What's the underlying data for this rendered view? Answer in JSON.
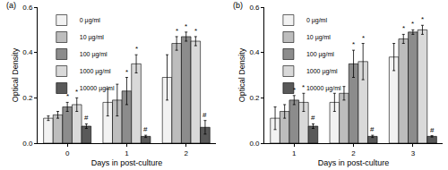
{
  "chart_data": [
    {
      "type": "bar",
      "title": "(a)",
      "x_label": "Days in post-culture",
      "y_label": "Optical Density",
      "categories": [
        "0",
        "1",
        "2"
      ],
      "series": [
        {
          "name": "0 µg/ml",
          "color": "#f2f2f2",
          "values": [
            0.11,
            0.18,
            0.29
          ],
          "errors": [
            0.01,
            0.06,
            0.1
          ],
          "annotations": [
            null,
            null,
            null
          ]
        },
        {
          "name": "10 µg/ml",
          "color": "#bdbdbd",
          "values": [
            0.125,
            0.19,
            0.44
          ],
          "errors": [
            0.015,
            0.07,
            0.03
          ],
          "annotations": [
            null,
            null,
            "*"
          ]
        },
        {
          "name": "100 µg/ml",
          "color": "#8c8c8c",
          "values": [
            0.16,
            0.23,
            0.47
          ],
          "errors": [
            0.02,
            0.06,
            0.02
          ],
          "annotations": [
            "*",
            "*",
            "*"
          ]
        },
        {
          "name": "1000 µg/ml",
          "color": "#d9d9d9",
          "values": [
            0.17,
            0.35,
            0.45
          ],
          "errors": [
            0.03,
            0.04,
            0.02
          ],
          "annotations": [
            "*",
            "*",
            "*"
          ]
        },
        {
          "name": "10000 µg/ml",
          "color": "#595959",
          "values": [
            0.075,
            0.03,
            0.07
          ],
          "errors": [
            0.01,
            0.005,
            0.03
          ],
          "annotations": [
            "#",
            "#",
            "#"
          ]
        }
      ],
      "ylim": [
        0,
        0.6
      ],
      "yticks": [
        {
          "value": 0,
          "label": "0.0"
        },
        0.2,
        0.4,
        0.6
      ],
      "legend": "top-left",
      "grid": false
    },
    {
      "type": "bar",
      "title": "(b)",
      "x_label": "Days in post-culture",
      "y_label": "Optical Density",
      "categories": [
        "1",
        "2",
        "3"
      ],
      "series": [
        {
          "name": "0 µg/ml",
          "color": "#f2f2f2",
          "values": [
            0.11,
            0.18,
            0.38
          ],
          "errors": [
            0.05,
            0.04,
            0.06
          ],
          "annotations": [
            null,
            null,
            null
          ]
        },
        {
          "name": "10 µg/ml",
          "color": "#bdbdbd",
          "values": [
            0.14,
            0.22,
            0.46
          ],
          "errors": [
            0.03,
            0.03,
            0.02
          ],
          "annotations": [
            null,
            null,
            "*"
          ]
        },
        {
          "name": "100 µg/ml",
          "color": "#8c8c8c",
          "values": [
            0.19,
            0.35,
            0.49
          ],
          "errors": [
            0.02,
            0.06,
            0.01
          ],
          "annotations": [
            "*",
            "*",
            "*"
          ]
        },
        {
          "name": "1000 µg/ml",
          "color": "#d9d9d9",
          "values": [
            0.18,
            0.36,
            0.5
          ],
          "errors": [
            0.04,
            0.08,
            0.02
          ],
          "annotations": [
            "*",
            "*",
            "*"
          ]
        },
        {
          "name": "10000 µg/ml",
          "color": "#595959",
          "values": [
            0.075,
            0.03,
            0.03
          ],
          "errors": [
            0.01,
            0.005,
            0.003
          ],
          "annotations": [
            "#",
            "#",
            "#"
          ]
        }
      ],
      "ylim": [
        0,
        0.6
      ],
      "yticks": [
        {
          "value": 0,
          "label": "0.0"
        },
        0.2,
        0.4,
        0.6
      ],
      "legend": "top-left",
      "grid": false
    }
  ]
}
